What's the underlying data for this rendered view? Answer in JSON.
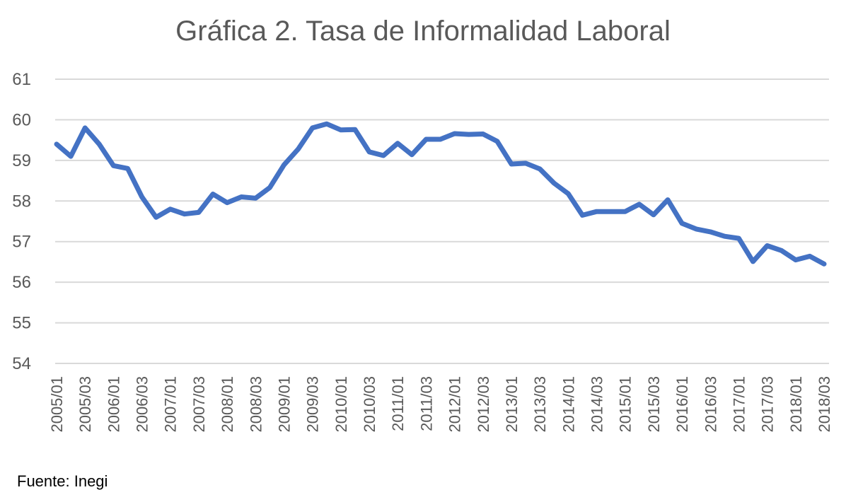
{
  "source_note": "Fuente: Inegi",
  "chart_data": {
    "type": "line",
    "title": "Gráfica 2. Tasa de Informalidad Laboral",
    "xlabel": "",
    "ylabel": "",
    "ylim": [
      54,
      61
    ],
    "yticks": [
      54,
      55,
      56,
      57,
      58,
      59,
      60,
      61
    ],
    "grid": true,
    "legend": "none",
    "line_color": "#4472c4",
    "x": [
      "2005/01",
      "2005/02",
      "2005/03",
      "2005/04",
      "2006/01",
      "2006/02",
      "2006/03",
      "2006/04",
      "2007/01",
      "2007/02",
      "2007/03",
      "2007/04",
      "2008/01",
      "2008/02",
      "2008/03",
      "2008/04",
      "2009/01",
      "2009/02",
      "2009/03",
      "2009/04",
      "2010/01",
      "2010/02",
      "2010/03",
      "2010/04",
      "2011/01",
      "2011/02",
      "2011/03",
      "2011/04",
      "2012/01",
      "2012/02",
      "2012/03",
      "2012/04",
      "2013/01",
      "2013/02",
      "2013/03",
      "2013/04",
      "2014/01",
      "2014/02",
      "2014/03",
      "2014/04",
      "2015/01",
      "2015/02",
      "2015/03",
      "2015/04",
      "2016/01",
      "2016/02",
      "2016/03",
      "2016/04",
      "2017/01",
      "2017/02",
      "2017/03",
      "2017/04",
      "2018/01",
      "2018/02",
      "2018/03"
    ],
    "x_tick_labels": [
      "2005/01",
      "2005/03",
      "2006/01",
      "2006/03",
      "2007/01",
      "2007/03",
      "2008/01",
      "2008/03",
      "2009/01",
      "2009/03",
      "2010/01",
      "2010/03",
      "2011/01",
      "2011/03",
      "2012/01",
      "2012/03",
      "2013/01",
      "2013/03",
      "2014/01",
      "2014/03",
      "2015/01",
      "2015/03",
      "2016/01",
      "2016/03",
      "2017/01",
      "2017/03",
      "2018/01",
      "2018/03"
    ],
    "series": [
      {
        "values": [
          59.4,
          59.1,
          59.8,
          59.4,
          58.87,
          58.8,
          58.1,
          57.6,
          57.8,
          57.68,
          57.72,
          58.17,
          57.96,
          58.1,
          58.07,
          58.33,
          58.89,
          59.28,
          59.8,
          59.9,
          59.75,
          59.76,
          59.21,
          59.12,
          59.42,
          59.14,
          59.52,
          59.52,
          59.66,
          59.64,
          59.65,
          59.47,
          58.91,
          58.93,
          58.79,
          58.44,
          58.18,
          57.65,
          57.74,
          57.74,
          57.74,
          57.92,
          57.66,
          58.03,
          57.45,
          57.31,
          57.24,
          57.13,
          57.08,
          56.51,
          56.9,
          56.78,
          56.55,
          56.64,
          56.45
        ]
      }
    ]
  }
}
